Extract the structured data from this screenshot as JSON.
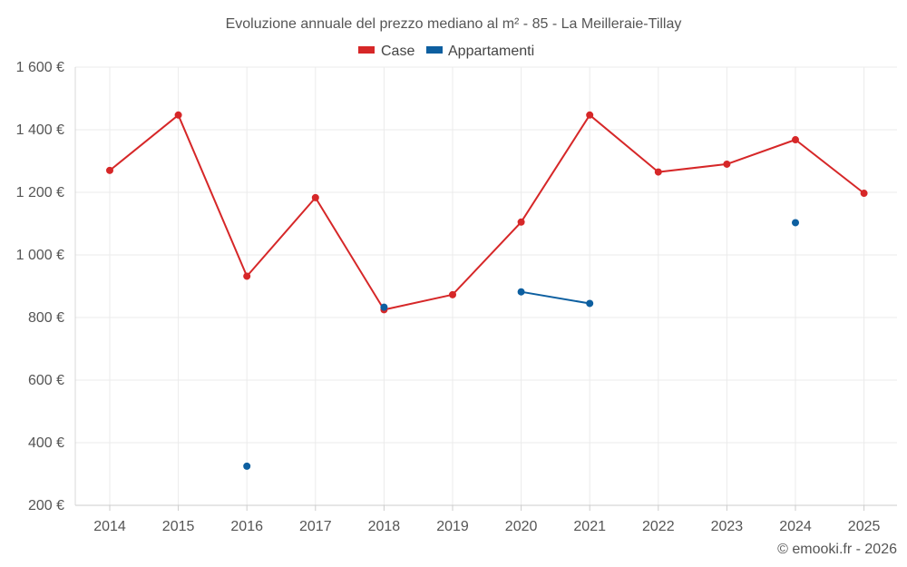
{
  "chart_data": {
    "type": "line",
    "title": "Evoluzione annuale del prezzo mediano al m² - 85 - La Meilleraie-Tillay",
    "x": [
      "2014",
      "2015",
      "2016",
      "2017",
      "2018",
      "2019",
      "2020",
      "2021",
      "2022",
      "2023",
      "2024",
      "2025"
    ],
    "ylim": [
      200,
      1600
    ],
    "yticks": [
      200,
      400,
      600,
      800,
      1000,
      1200,
      1400,
      1600
    ],
    "ytick_labels": [
      "200 €",
      "400 €",
      "600 €",
      "800 €",
      "1 000 €",
      "1 200 €",
      "1 400 €",
      "1 600 €"
    ],
    "grid": true,
    "legend_position": "top-center",
    "series": [
      {
        "name": "Case",
        "color": "#d62728",
        "values": [
          1270,
          1447,
          932,
          1183,
          825,
          873,
          1105,
          1447,
          1265,
          1290,
          1368,
          1197
        ]
      },
      {
        "name": "Appartamenti",
        "color": "#0d5fa0",
        "values": [
          null,
          null,
          325,
          null,
          833,
          null,
          882,
          845,
          null,
          null,
          1103,
          null
        ]
      }
    ],
    "credit": "© emooki.fr - 2026"
  }
}
